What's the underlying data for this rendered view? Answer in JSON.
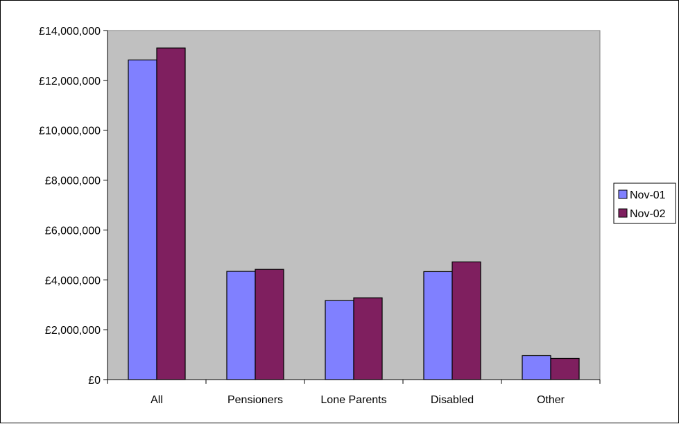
{
  "chart_data": {
    "type": "bar",
    "categories": [
      "All",
      "Pensioners",
      "Lone Parents",
      "Disabled",
      "Other"
    ],
    "series": [
      {
        "name": "Nov-01",
        "color": "#8080ff",
        "values": [
          12820000,
          4340000,
          3170000,
          4330000,
          960000
        ]
      },
      {
        "name": "Nov-02",
        "color": "#7f1f5f",
        "values": [
          13300000,
          4420000,
          3280000,
          4720000,
          850000
        ]
      }
    ],
    "y_ticks": [
      0,
      2000000,
      4000000,
      6000000,
      8000000,
      10000000,
      12000000,
      14000000
    ],
    "y_tick_labels": [
      "£0",
      "£2,000,000",
      "£4,000,000",
      "£6,000,000",
      "£8,000,000",
      "£10,000,000",
      "£12,000,000",
      "£14,000,000"
    ],
    "ylim": [
      0,
      14000000
    ],
    "title": "",
    "xlabel": "",
    "ylabel": "",
    "plot_background": "#c0c0c0",
    "grid": false,
    "legend_position": "right"
  }
}
